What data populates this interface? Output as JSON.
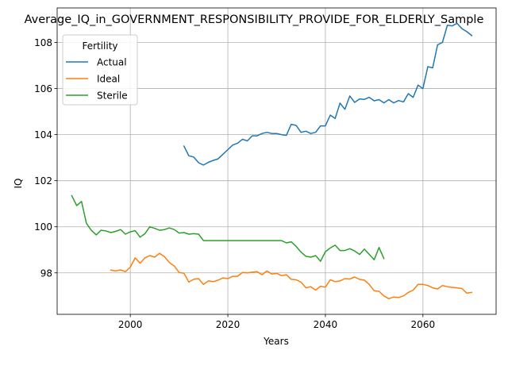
{
  "chart_data": {
    "type": "line",
    "title": "Average_IQ_in_GOVERNMENT_RESPONSIBILITY_PROVIDE_FOR_ELDERLY_Sample",
    "xlabel": "Years",
    "ylabel": "IQ",
    "xlim": [
      1985,
      2075
    ],
    "ylim": [
      96.2,
      109.5
    ],
    "x_ticks": [
      2000,
      2020,
      2040,
      2060
    ],
    "y_ticks": [
      98,
      100,
      102,
      104,
      106,
      108
    ],
    "grid": true,
    "legend": {
      "title": "Fertility",
      "placement": "top-left"
    },
    "series": [
      {
        "name": "Actual",
        "color": "#1f77b4",
        "x": [
          2011,
          2012,
          2013,
          2014,
          2015,
          2016,
          2017,
          2018,
          2019,
          2020,
          2021,
          2022,
          2023,
          2024,
          2025,
          2026,
          2027,
          2028,
          2029,
          2030,
          2031,
          2032,
          2033,
          2034,
          2035,
          2036,
          2037,
          2038,
          2039,
          2040,
          2041,
          2042,
          2043,
          2044,
          2045,
          2046,
          2047,
          2048,
          2049,
          2050,
          2051,
          2052,
          2053,
          2054,
          2055,
          2056,
          2057,
          2058,
          2059,
          2060,
          2061,
          2062,
          2063,
          2064,
          2065,
          2066,
          2067,
          2068,
          2069,
          2070
        ],
        "values": [
          103.5,
          103.08,
          103.03,
          102.78,
          102.68,
          102.8,
          102.88,
          102.95,
          103.15,
          103.35,
          103.55,
          103.63,
          103.8,
          103.73,
          103.95,
          103.95,
          104.05,
          104.1,
          104.05,
          104.05,
          104.0,
          103.97,
          104.45,
          104.4,
          104.1,
          104.15,
          104.05,
          104.1,
          104.38,
          104.38,
          104.85,
          104.7,
          105.37,
          105.1,
          105.68,
          105.4,
          105.55,
          105.53,
          105.62,
          105.47,
          105.52,
          105.38,
          105.52,
          105.38,
          105.48,
          105.42,
          105.78,
          105.62,
          106.15,
          106.0,
          106.95,
          106.9,
          107.9,
          108.0,
          108.75,
          108.72,
          108.83,
          108.6,
          108.47,
          108.3
        ]
      },
      {
        "name": "Ideal",
        "color": "#ff7f0e",
        "x": [
          1996,
          1997,
          1998,
          1999,
          2000,
          2001,
          2002,
          2003,
          2004,
          2005,
          2006,
          2007,
          2008,
          2009,
          2010,
          2011,
          2012,
          2013,
          2014,
          2015,
          2016,
          2017,
          2018,
          2019,
          2020,
          2021,
          2022,
          2023,
          2024,
          2025,
          2026,
          2027,
          2028,
          2029,
          2030,
          2031,
          2032,
          2033,
          2034,
          2035,
          2036,
          2037,
          2038,
          2039,
          2040,
          2041,
          2042,
          2043,
          2044,
          2045,
          2046,
          2047,
          2048,
          2049,
          2050,
          2051,
          2052,
          2053,
          2054,
          2055,
          2056,
          2057,
          2058,
          2059,
          2060,
          2061,
          2062,
          2063,
          2064,
          2065,
          2066,
          2067,
          2068,
          2069,
          2070
        ],
        "values": [
          98.12,
          98.08,
          98.13,
          98.05,
          98.25,
          98.65,
          98.42,
          98.65,
          98.75,
          98.68,
          98.85,
          98.7,
          98.45,
          98.3,
          98.02,
          97.98,
          97.6,
          97.72,
          97.75,
          97.5,
          97.65,
          97.62,
          97.68,
          97.78,
          97.75,
          97.85,
          97.85,
          98.02,
          98.0,
          98.03,
          98.05,
          97.92,
          98.08,
          97.95,
          97.98,
          97.88,
          97.92,
          97.72,
          97.7,
          97.6,
          97.35,
          97.4,
          97.25,
          97.42,
          97.38,
          97.7,
          97.62,
          97.65,
          97.75,
          97.73,
          97.82,
          97.72,
          97.68,
          97.5,
          97.22,
          97.2,
          97.0,
          96.88,
          96.95,
          96.93,
          97.0,
          97.15,
          97.25,
          97.5,
          97.5,
          97.45,
          97.35,
          97.3,
          97.45,
          97.4,
          97.37,
          97.35,
          97.32,
          97.12,
          97.15
        ]
      },
      {
        "name": "Sterile",
        "color": "#2ca02c",
        "x": [
          1988,
          1989,
          1990,
          1991,
          1992,
          1993,
          1994,
          1995,
          1996,
          1997,
          1998,
          1999,
          2000,
          2001,
          2002,
          2003,
          2004,
          2005,
          2006,
          2007,
          2008,
          2009,
          2010,
          2011,
          2012,
          2013,
          2014,
          2015,
          2016,
          2017,
          2018,
          2019,
          2020,
          2021,
          2022,
          2023,
          2024,
          2025,
          2026,
          2027,
          2028,
          2029,
          2030,
          2031,
          2032,
          2033,
          2034,
          2035,
          2036,
          2037,
          2038,
          2039,
          2040,
          2041,
          2042,
          2043,
          2044,
          2045,
          2046,
          2047,
          2048,
          2049,
          2050,
          2051,
          2052
        ],
        "values": [
          101.35,
          100.92,
          101.1,
          100.15,
          99.85,
          99.65,
          99.85,
          99.82,
          99.75,
          99.8,
          99.88,
          99.68,
          99.78,
          99.83,
          99.55,
          99.7,
          100.0,
          99.93,
          99.85,
          99.88,
          99.95,
          99.88,
          99.73,
          99.75,
          99.68,
          99.7,
          99.68,
          99.4,
          99.4,
          99.4,
          99.4,
          99.4,
          99.4,
          99.4,
          99.4,
          99.4,
          99.4,
          99.4,
          99.4,
          99.4,
          99.4,
          99.4,
          99.4,
          99.4,
          99.3,
          99.35,
          99.15,
          98.9,
          98.72,
          98.68,
          98.75,
          98.5,
          98.92,
          99.08,
          99.2,
          98.97,
          98.97,
          99.05,
          98.95,
          98.8,
          99.03,
          98.8,
          98.57,
          99.1,
          98.62
        ]
      }
    ]
  }
}
